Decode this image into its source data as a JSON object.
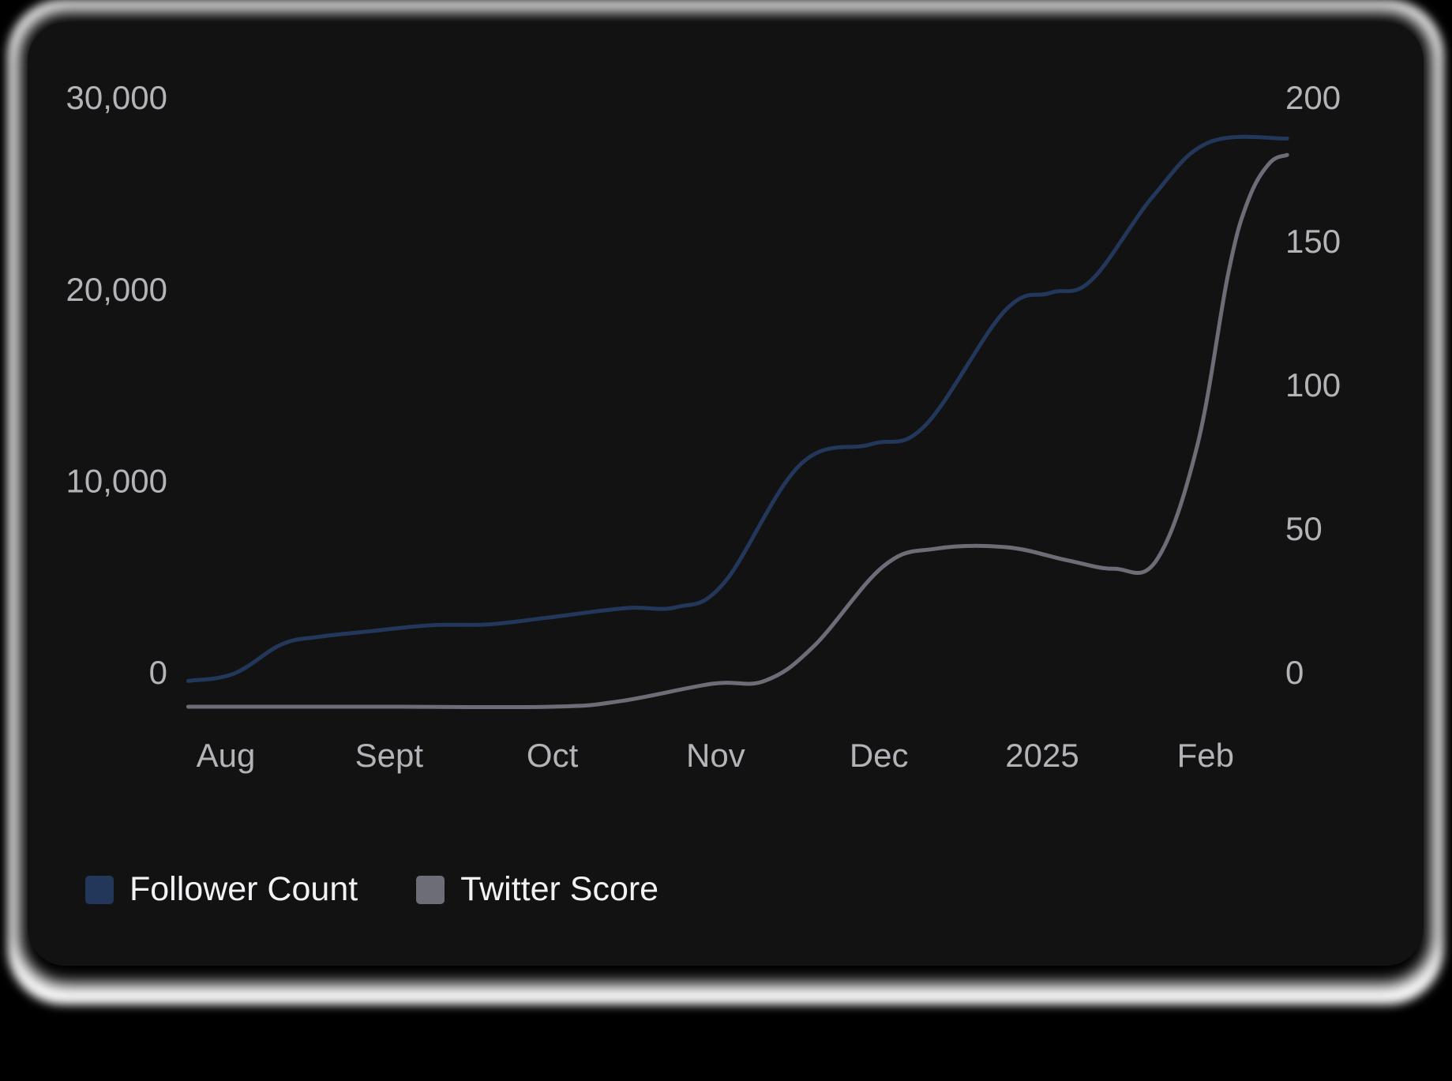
{
  "colors": {
    "follower": "#22375a",
    "score": "#6c6d76"
  },
  "chart_data": {
    "type": "line",
    "title": "",
    "xlabel": "",
    "x_ticks": [
      "Aug",
      "Sept",
      "Oct",
      "Nov",
      "Dec",
      "2025",
      "Feb"
    ],
    "y_left": {
      "ticks": [
        "30,000",
        "20,000",
        "10,000",
        "0"
      ],
      "ylim": [
        0,
        30000
      ]
    },
    "y_right": {
      "ticks": [
        "200",
        "150",
        "100",
        "50",
        "0"
      ],
      "ylim": [
        0,
        200
      ]
    },
    "legend_position": "bottom-left",
    "grid": false,
    "series": [
      {
        "name": "Follower Count",
        "axis": "left",
        "color": "#22375a",
        "points": [
          [
            -0.23,
            -300
          ],
          [
            0.05,
            80
          ],
          [
            0.34,
            1600
          ],
          [
            0.57,
            2000
          ],
          [
            0.84,
            2250
          ],
          [
            1.25,
            2600
          ],
          [
            1.61,
            2650
          ],
          [
            1.97,
            3000
          ],
          [
            2.45,
            3500
          ],
          [
            2.76,
            3550
          ],
          [
            3.05,
            4800
          ],
          [
            3.52,
            11000
          ],
          [
            3.95,
            12050
          ],
          [
            4.28,
            13000
          ],
          [
            4.77,
            19000
          ],
          [
            5.05,
            19950
          ],
          [
            5.3,
            20600
          ],
          [
            5.68,
            25000
          ],
          [
            6.02,
            27800
          ],
          [
            6.5,
            28000
          ]
        ]
      },
      {
        "name": "Twitter Score",
        "axis": "right",
        "color": "#6c6d76",
        "points": [
          [
            -0.23,
            -11
          ],
          [
            1.0,
            -11
          ],
          [
            2.0,
            -11
          ],
          [
            2.42,
            -9
          ],
          [
            2.98,
            -3
          ],
          [
            3.3,
            -2
          ],
          [
            3.6,
            10
          ],
          [
            4.03,
            38
          ],
          [
            4.35,
            44
          ],
          [
            4.78,
            44.5
          ],
          [
            5.15,
            40
          ],
          [
            5.44,
            37
          ],
          [
            5.7,
            40
          ],
          [
            5.95,
            80
          ],
          [
            6.14,
            140
          ],
          [
            6.26,
            165
          ],
          [
            6.39,
            178
          ],
          [
            6.5,
            181
          ]
        ]
      }
    ]
  }
}
